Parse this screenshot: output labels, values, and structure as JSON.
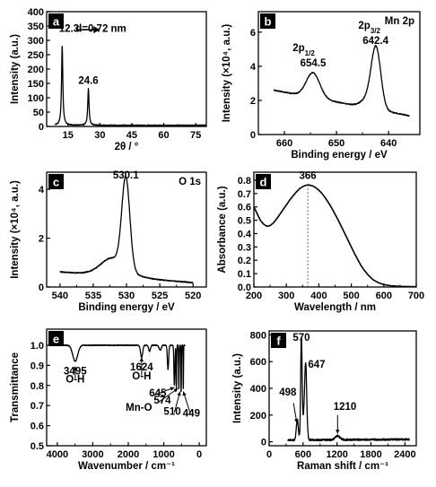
{
  "panels": [
    {
      "id": "a",
      "letter": "a",
      "xlabel": "2θ / °",
      "ylabel": "Intensity (a.u.)",
      "xlim": [
        5,
        80
      ],
      "ylim": [
        0,
        400
      ],
      "xticks": [
        15,
        30,
        45,
        60,
        75
      ],
      "yticks": [
        0,
        50,
        100,
        150,
        200,
        250,
        300,
        350,
        400
      ],
      "xtick_labels": [
        "15",
        "30",
        "45",
        "60",
        "75"
      ],
      "ytick_labels": [
        "0",
        "50",
        "100",
        "150",
        "200",
        "250",
        "300",
        "350",
        "400"
      ],
      "peaks": [
        {
          "center": 12.3,
          "height": 278,
          "width": 0.35
        },
        {
          "center": 24.6,
          "height": 128,
          "width": 0.35
        }
      ],
      "baseline": 4,
      "annotations": [
        {
          "text": "12.3",
          "x": 15.5,
          "y": 330
        },
        {
          "text": "d=0.72 nm",
          "x": 30.5,
          "y": 330
        },
        {
          "text": "24.6",
          "x": 24.6,
          "y": 148
        }
      ]
    },
    {
      "id": "b",
      "letter": "b",
      "xlabel": "Binding energy / eV",
      "ylabel": "Intensity (×10⁴, a.u.)",
      "xlim": [
        665,
        634
      ],
      "ylim": [
        0,
        7.2
      ],
      "xticks": [
        660,
        650,
        640
      ],
      "yticks": [
        0,
        2,
        4,
        6
      ],
      "xtick_labels": [
        "660",
        "650",
        "640"
      ],
      "ytick_labels": [
        "0",
        "2",
        "4",
        "6"
      ],
      "corner_text": "Mn 2p",
      "spectrum": {
        "x_range": [
          662,
          636
        ],
        "baseline": [
          2.6,
          1.1
        ],
        "peaks": [
          {
            "center": 654.5,
            "height": 1.45,
            "width": 1.3
          },
          {
            "center": 642.4,
            "height": 3.3,
            "width": 0.9
          },
          {
            "center": 643.6,
            "height": 0.6,
            "width": 1.4
          }
        ]
      },
      "annotations": [
        {
          "text": "2p",
          "sub": "1/2",
          "x": 656.3,
          "y": 4.9
        },
        {
          "text": "654.5",
          "x": 654.5,
          "y": 4.0
        },
        {
          "text": "2p",
          "sub": "3/2",
          "x": 643.7,
          "y": 6.2
        },
        {
          "text": "642.4",
          "x": 642.5,
          "y": 5.3
        }
      ]
    },
    {
      "id": "c",
      "letter": "c",
      "xlabel": "Binding energy / eV",
      "ylabel": "Intensity (×10⁴, a.u.)",
      "xlim": [
        542,
        518
      ],
      "ylim": [
        0,
        4.7
      ],
      "xticks": [
        540,
        535,
        530,
        525,
        520
      ],
      "yticks": [
        0,
        2,
        4
      ],
      "xtick_labels": [
        "540",
        "535",
        "530",
        "525",
        "520"
      ],
      "ytick_labels": [
        "0",
        "2",
        "4"
      ],
      "corner_text": "O 1s",
      "spectrum": {
        "x_range": [
          540,
          520
        ],
        "baseline": [
          0.62,
          0.18
        ],
        "peaks": [
          {
            "center": 530.1,
            "height": 3.7,
            "width": 0.6
          },
          {
            "center": 532.2,
            "height": 0.5,
            "width": 1.6
          }
        ]
      },
      "annotations": [
        {
          "text": "530.1",
          "x": 530.1,
          "y": 4.45
        }
      ]
    },
    {
      "id": "d",
      "letter": "d",
      "xlabel": "Wavelength / nm",
      "ylabel": "Absorbance (a.u.)",
      "xlim": [
        200,
        700
      ],
      "ylim": [
        0,
        0.86
      ],
      "xticks": [
        200,
        300,
        400,
        500,
        600,
        700
      ],
      "yticks": [
        0.0,
        0.1,
        0.2,
        0.3,
        0.4,
        0.5,
        0.6,
        0.7,
        0.8
      ],
      "xtick_labels": [
        "200",
        "300",
        "400",
        "500",
        "600",
        "700"
      ],
      "ytick_labels": [
        "0.0",
        "0.1",
        "0.2",
        "0.3",
        "0.4",
        "0.5",
        "0.6",
        "0.7",
        "0.8"
      ],
      "curve": {
        "x": [
          200,
          210,
          220,
          230,
          240,
          250,
          260,
          270,
          280,
          290,
          300,
          310,
          320,
          330,
          340,
          350,
          360,
          366,
          370,
          380,
          390,
          400,
          410,
          420,
          430,
          440,
          450,
          460,
          470,
          480,
          490,
          500,
          510,
          520,
          530,
          540,
          550,
          560,
          570,
          580,
          590,
          600,
          620,
          640,
          660,
          680,
          700
        ],
        "y": [
          0.6,
          0.55,
          0.5,
          0.47,
          0.455,
          0.46,
          0.48,
          0.51,
          0.545,
          0.58,
          0.615,
          0.65,
          0.68,
          0.71,
          0.735,
          0.752,
          0.762,
          0.765,
          0.764,
          0.758,
          0.745,
          0.725,
          0.7,
          0.668,
          0.63,
          0.59,
          0.545,
          0.5,
          0.45,
          0.4,
          0.35,
          0.3,
          0.25,
          0.205,
          0.16,
          0.125,
          0.095,
          0.07,
          0.05,
          0.036,
          0.026,
          0.018,
          0.01,
          0.006,
          0.004,
          0.003,
          0.002
        ]
      },
      "vline_x": 366,
      "annotations": [
        {
          "text": "366",
          "x": 366,
          "y": 0.81
        }
      ]
    },
    {
      "id": "e",
      "letter": "e",
      "xlabel": "Wavenumber / cm⁻¹",
      "ylabel": "Transmittance",
      "xlim": [
        4300,
        -200
      ],
      "ylim": [
        0.5,
        1.08
      ],
      "xticks": [
        4000,
        3000,
        2000,
        1000,
        0
      ],
      "yticks": [
        0.5,
        0.6,
        0.7,
        0.8,
        0.9,
        1.0
      ],
      "xtick_labels": [
        "4000",
        "3000",
        "2000",
        "1000",
        "0"
      ],
      "ytick_labels": [
        "0.5",
        "0.6",
        "0.7",
        "0.8",
        "0.9",
        "1.0"
      ],
      "curve": {
        "baseline": 1.0,
        "x_range": [
          4000,
          400
        ],
        "dips": [
          {
            "center": 3495,
            "depth": 0.08,
            "width": 70
          },
          {
            "center": 1624,
            "depth": 0.06,
            "width": 30
          },
          {
            "center": 1400,
            "depth": 0.03,
            "width": 25
          },
          {
            "center": 1100,
            "depth": 0.025,
            "width": 30
          },
          {
            "center": 880,
            "depth": 0.12,
            "width": 18
          },
          {
            "center": 700,
            "depth": 0.2,
            "width": 14
          },
          {
            "center": 645,
            "depth": 0.22,
            "width": 8
          },
          {
            "center": 574,
            "depth": 0.22,
            "width": 8
          },
          {
            "center": 510,
            "depth": 0.24,
            "width": 7
          },
          {
            "center": 449,
            "depth": 0.22,
            "width": 6
          }
        ]
      },
      "annotations": [
        {
          "text": "3495",
          "x": 3495,
          "y": 0.855
        },
        {
          "text": "O-H",
          "x": 3495,
          "y": 0.815
        },
        {
          "text": "1624",
          "x": 1624,
          "y": 0.875
        },
        {
          "text": "O-H",
          "x": 1624,
          "y": 0.83
        },
        {
          "text": "645",
          "x": 1170,
          "y": 0.745
        },
        {
          "text": "574",
          "x": 1040,
          "y": 0.71
        },
        {
          "text": "Mn-O",
          "x": 1700,
          "y": 0.675
        },
        {
          "text": "510",
          "x": 760,
          "y": 0.655
        },
        {
          "text": "449",
          "x": 220,
          "y": 0.645
        }
      ]
    },
    {
      "id": "f",
      "letter": "f",
      "xlabel": "Raman shift / cm⁻¹",
      "ylabel": "Intensity (a.u.)",
      "xlim": [
        0,
        2600
      ],
      "ylim": [
        -30,
        830
      ],
      "xticks": [
        0,
        600,
        1200,
        1800,
        2400
      ],
      "yticks": [
        0,
        200,
        400,
        600,
        800
      ],
      "xtick_labels": [
        "0",
        "600",
        "1200",
        "1800",
        "2400"
      ],
      "ytick_labels": [
        "0",
        "200",
        "400",
        "600",
        "800"
      ],
      "spectrum": {
        "x_range": [
          330,
          2480
        ],
        "baseline": [
          12,
          18
        ],
        "peaks": [
          {
            "center": 498,
            "height": 150,
            "width": 18
          },
          {
            "center": 570,
            "height": 725,
            "width": 13
          },
          {
            "center": 647,
            "height": 470,
            "width": 18
          },
          {
            "center": 620,
            "height": 160,
            "width": 30
          },
          {
            "center": 1210,
            "height": 30,
            "width": 40
          }
        ]
      },
      "annotations": [
        {
          "text": "498",
          "x": 330,
          "y": 345
        },
        {
          "text": "570",
          "x": 570,
          "y": 755
        },
        {
          "text": "647",
          "x": 840,
          "y": 555
        },
        {
          "text": "1210",
          "x": 1340,
          "y": 240
        }
      ]
    }
  ],
  "arrow_label_a": "d=0.72 nm"
}
